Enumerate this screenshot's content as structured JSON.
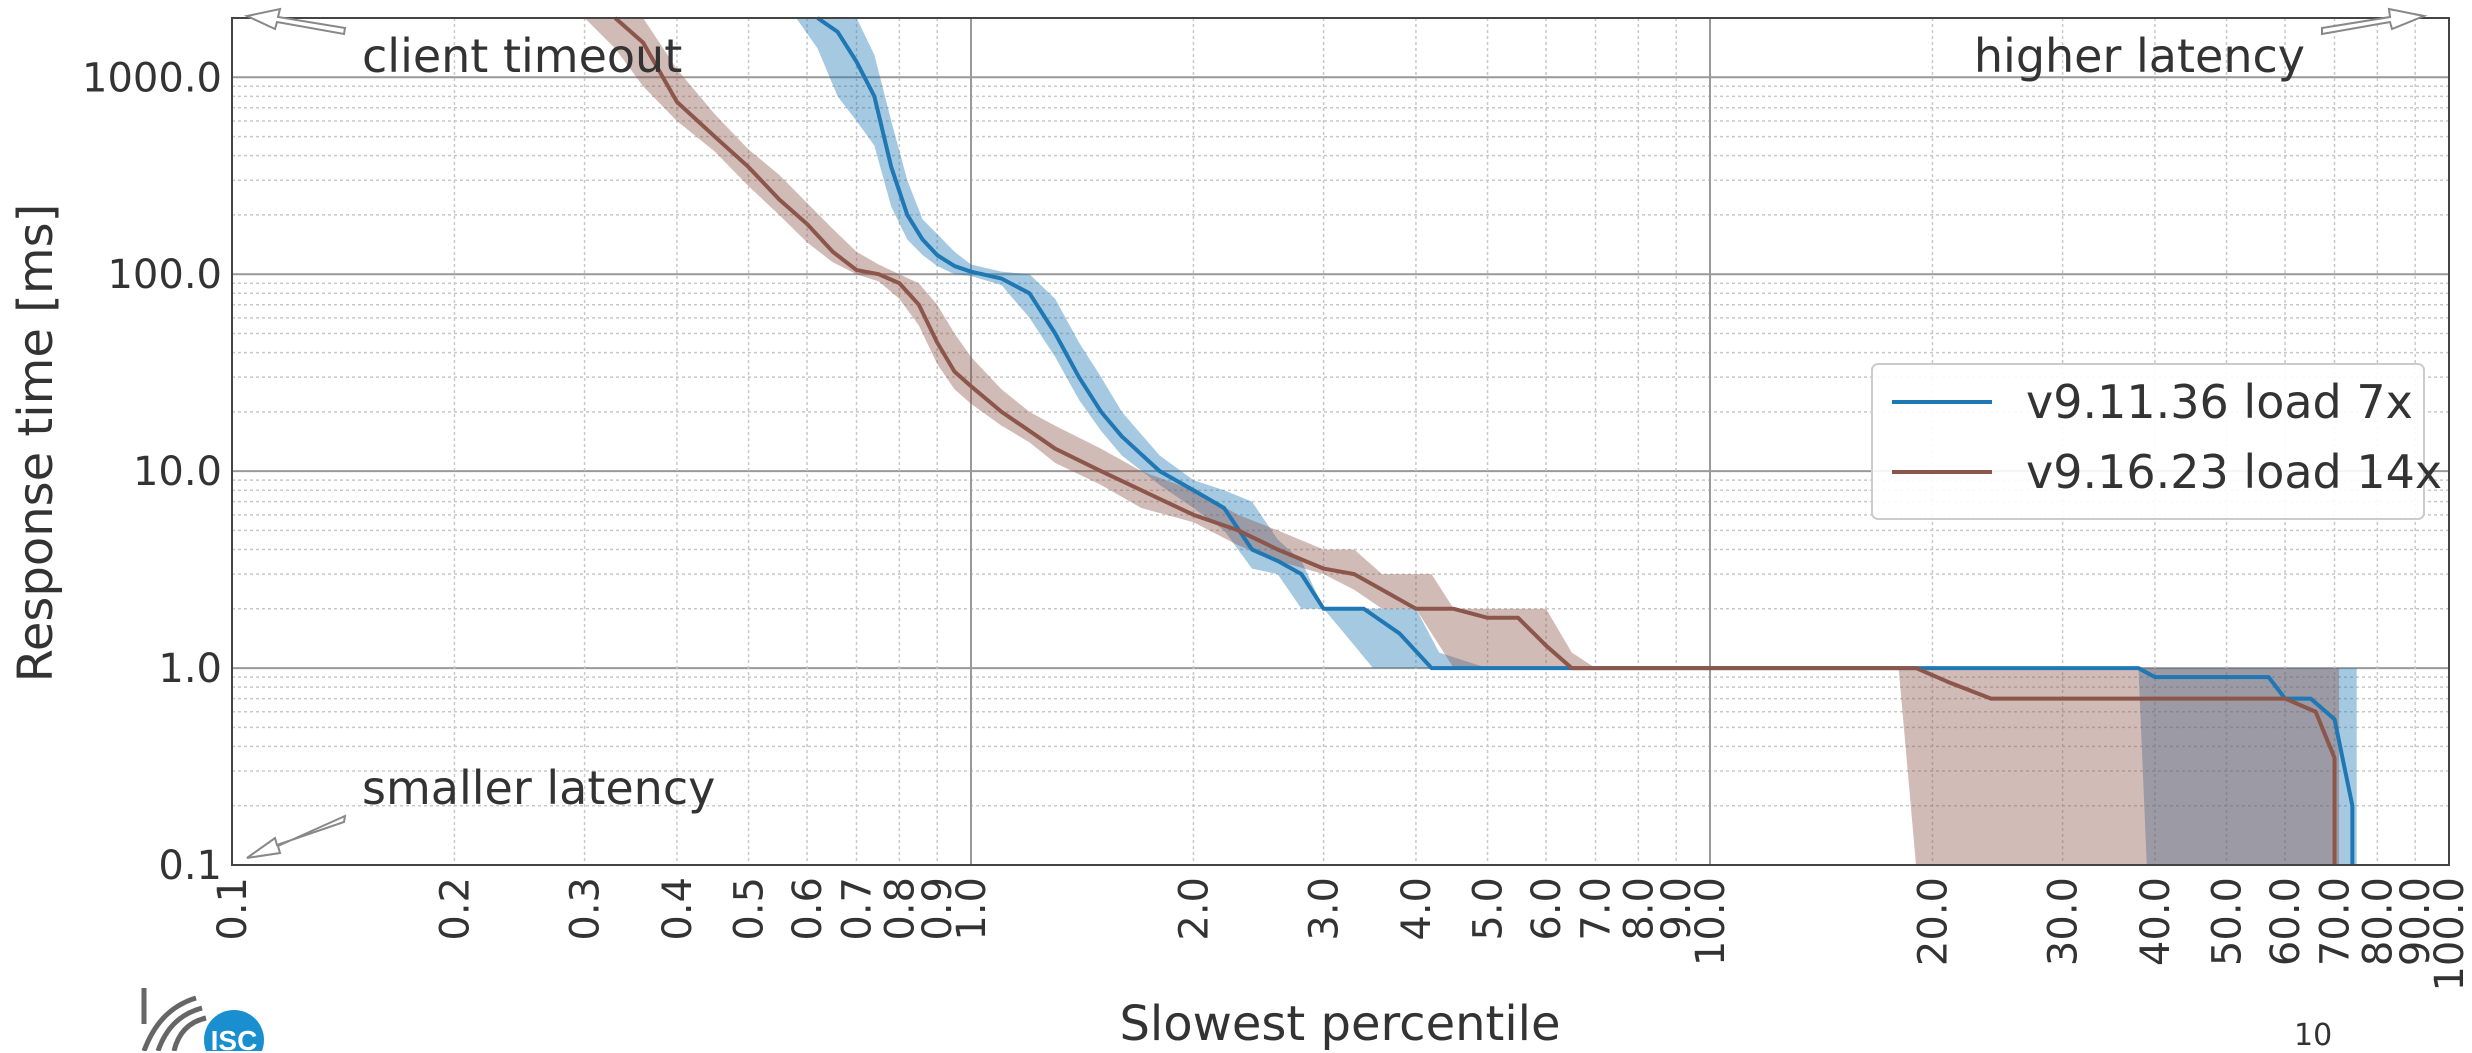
{
  "slide": {
    "page_number": "10",
    "logo_text": "ISC"
  },
  "colors": {
    "v9_11": "#1f77b4",
    "v9_16": "#8c564b"
  },
  "chart_data": {
    "type": "line",
    "xlabel": "Slowest percentile",
    "ylabel": "Response time [ms]",
    "xscale": "log",
    "yscale": "log",
    "xlim": [
      0.1,
      100.0
    ],
    "ylim": [
      0.1,
      2000.0
    ],
    "grid": true,
    "legend_position": "right",
    "x_ticks": [
      "0.1",
      "0.2",
      "0.3",
      "0.4",
      "0.5",
      "0.6",
      "0.7",
      "0.8",
      "0.9",
      "1.0",
      "2.0",
      "3.0",
      "4.0",
      "5.0",
      "6.0",
      "7.0",
      "8.0",
      "9.0",
      "10.0",
      "20.0",
      "30.0",
      "40.0",
      "50.0",
      "60.0",
      "70.0",
      "80.0",
      "90.0",
      "100.0"
    ],
    "y_ticks": [
      "0.1",
      "1.0",
      "10.0",
      "100.0",
      "1000.0"
    ],
    "annotations": {
      "top_left": "client timeout",
      "top_right": "higher latency",
      "bottom_left": "smaller latency"
    },
    "series": [
      {
        "name": "v9.11.36 load 7x",
        "color": "#1f77b4",
        "points": [
          [
            0.62,
            2000
          ],
          [
            0.66,
            1700
          ],
          [
            0.7,
            1200
          ],
          [
            0.74,
            800
          ],
          [
            0.78,
            350
          ],
          [
            0.82,
            200
          ],
          [
            0.86,
            150
          ],
          [
            0.9,
            125
          ],
          [
            0.95,
            110
          ],
          [
            1.0,
            103
          ],
          [
            1.1,
            95
          ],
          [
            1.2,
            80
          ],
          [
            1.3,
            50
          ],
          [
            1.4,
            30
          ],
          [
            1.5,
            20
          ],
          [
            1.6,
            15
          ],
          [
            1.8,
            10
          ],
          [
            2.0,
            8
          ],
          [
            2.2,
            6.5
          ],
          [
            2.4,
            4
          ],
          [
            2.6,
            3.5
          ],
          [
            2.8,
            3
          ],
          [
            3.0,
            2
          ],
          [
            3.4,
            2
          ],
          [
            3.8,
            1.5
          ],
          [
            4.2,
            1
          ],
          [
            6,
            1
          ],
          [
            10,
            1
          ],
          [
            20,
            1
          ],
          [
            38,
            1
          ],
          [
            40,
            0.9
          ],
          [
            57,
            0.9
          ],
          [
            60,
            0.7
          ],
          [
            65,
            0.7
          ],
          [
            70,
            0.55
          ],
          [
            74,
            0.2
          ],
          [
            74,
            0.1
          ]
        ],
        "band": [
          [
            0.58,
            2000,
            2000
          ],
          [
            0.62,
            1400,
            2000
          ],
          [
            0.66,
            800,
            2000
          ],
          [
            0.7,
            600,
            2000
          ],
          [
            0.74,
            450,
            1300
          ],
          [
            0.78,
            220,
            600
          ],
          [
            0.82,
            150,
            300
          ],
          [
            0.86,
            125,
            190
          ],
          [
            0.9,
            110,
            160
          ],
          [
            0.95,
            100,
            130
          ],
          [
            1.0,
            98,
            112
          ],
          [
            1.1,
            88,
            103
          ],
          [
            1.2,
            60,
            100
          ],
          [
            1.3,
            38,
            75
          ],
          [
            1.4,
            23,
            45
          ],
          [
            1.5,
            16,
            30
          ],
          [
            1.6,
            12,
            20
          ],
          [
            1.8,
            8.5,
            12
          ],
          [
            2.0,
            6.5,
            9
          ],
          [
            2.2,
            5,
            8
          ],
          [
            2.4,
            3.2,
            7
          ],
          [
            2.6,
            3,
            4.5
          ],
          [
            2.8,
            2,
            3.5
          ],
          [
            3.0,
            2,
            2
          ],
          [
            3.2,
            1.5,
            2
          ],
          [
            3.5,
            1,
            2
          ],
          [
            4.0,
            1,
            2
          ],
          [
            4.3,
            1,
            1.2
          ],
          [
            5,
            1,
            1
          ],
          [
            38,
            1,
            1
          ],
          [
            39,
            0.1,
            1
          ],
          [
            74,
            0.1,
            1
          ],
          [
            75,
            0.1,
            1
          ]
        ]
      },
      {
        "name": "v9.16.23 load 14x",
        "color": "#8c564b",
        "points": [
          [
            0.33,
            2000
          ],
          [
            0.36,
            1500
          ],
          [
            0.4,
            750
          ],
          [
            0.45,
            500
          ],
          [
            0.5,
            350
          ],
          [
            0.55,
            240
          ],
          [
            0.6,
            180
          ],
          [
            0.65,
            130
          ],
          [
            0.7,
            105
          ],
          [
            0.75,
            100
          ],
          [
            0.8,
            90
          ],
          [
            0.85,
            70
          ],
          [
            0.9,
            45
          ],
          [
            0.95,
            32
          ],
          [
            1.0,
            27
          ],
          [
            1.1,
            20
          ],
          [
            1.2,
            16
          ],
          [
            1.3,
            13
          ],
          [
            1.5,
            10
          ],
          [
            1.7,
            8
          ],
          [
            2.0,
            6
          ],
          [
            2.3,
            5
          ],
          [
            2.6,
            4
          ],
          [
            3.0,
            3.2
          ],
          [
            3.3,
            3
          ],
          [
            3.6,
            2.5
          ],
          [
            4.0,
            2
          ],
          [
            4.5,
            2
          ],
          [
            5,
            1.8
          ],
          [
            5.5,
            1.8
          ],
          [
            6,
            1.3
          ],
          [
            6.5,
            1
          ],
          [
            10,
            1
          ],
          [
            19,
            1
          ],
          [
            21,
            0.85
          ],
          [
            24,
            0.7
          ],
          [
            60,
            0.7
          ],
          [
            66,
            0.6
          ],
          [
            70,
            0.35
          ],
          [
            70,
            0.1
          ]
        ],
        "band": [
          [
            0.3,
            2000,
            2000
          ],
          [
            0.33,
            1400,
            2000
          ],
          [
            0.36,
            900,
            2000
          ],
          [
            0.4,
            600,
            1100
          ],
          [
            0.45,
            420,
            650
          ],
          [
            0.5,
            280,
            430
          ],
          [
            0.55,
            200,
            320
          ],
          [
            0.6,
            145,
            230
          ],
          [
            0.65,
            115,
            170
          ],
          [
            0.7,
            100,
            130
          ],
          [
            0.75,
            92,
            112
          ],
          [
            0.8,
            75,
            100
          ],
          [
            0.85,
            55,
            90
          ],
          [
            0.9,
            35,
            70
          ],
          [
            0.95,
            26,
            50
          ],
          [
            1.0,
            22,
            38
          ],
          [
            1.1,
            17,
            26
          ],
          [
            1.2,
            14,
            20
          ],
          [
            1.3,
            11,
            17
          ],
          [
            1.5,
            8.5,
            13
          ],
          [
            1.7,
            6.5,
            10
          ],
          [
            2.0,
            5.5,
            8
          ],
          [
            2.3,
            4.2,
            6
          ],
          [
            2.6,
            3.5,
            5
          ],
          [
            3.0,
            3,
            4
          ],
          [
            3.3,
            2.5,
            4
          ],
          [
            3.6,
            2,
            3
          ],
          [
            4.0,
            2,
            3
          ],
          [
            4.2,
            1.5,
            3
          ],
          [
            4.5,
            1,
            2
          ],
          [
            5,
            1,
            2
          ],
          [
            6,
            1,
            2
          ],
          [
            6.5,
            1,
            1.2
          ],
          [
            7,
            1,
            1
          ],
          [
            18,
            1,
            1
          ],
          [
            19,
            0.1,
            1
          ],
          [
            70,
            0.1,
            1
          ],
          [
            71,
            0.1,
            1
          ]
        ]
      }
    ]
  }
}
